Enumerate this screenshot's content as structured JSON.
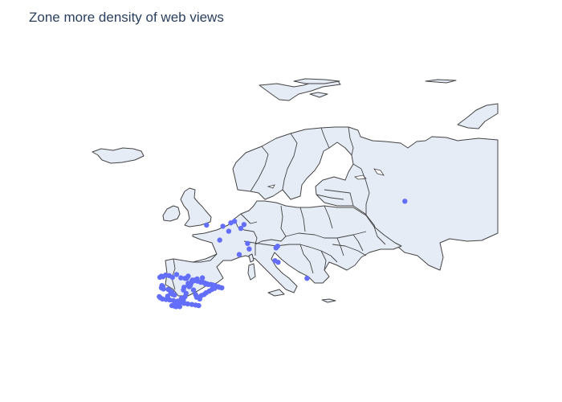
{
  "title": "Zone more density of web views",
  "colors": {
    "land": "#e5ecf6",
    "border": "#444444",
    "marker": "#636efa",
    "title": "#2a3f5f"
  },
  "chart_data": {
    "type": "scatter",
    "projection": "natural earth",
    "scope": "europe",
    "series": [
      {
        "lat": [
          42.3,
          42.2,
          42.5,
          42.4,
          42.1,
          42.6,
          42.0,
          41.9,
          42.3,
          41.6,
          41.5,
          41.3,
          40.9,
          40.6,
          40.4,
          40.2,
          40.0,
          39.9,
          39.6,
          39.4,
          39.2,
          39.0,
          38.9,
          38.7,
          38.6,
          38.4,
          38.2,
          38.1,
          38.0,
          37.9,
          37.8,
          37.6,
          37.4,
          37.3,
          37.2,
          37.1,
          37.0,
          37.3,
          37.5,
          37.7,
          37.0,
          36.9,
          36.8,
          36.8,
          37.9,
          38.3,
          38.6,
          39.2,
          39.8,
          40.3,
          40.7,
          41.1,
          41.5,
          41.4,
          41.2,
          41.1,
          40.9,
          40.8,
          40.8,
          40.7,
          40.6,
          40.4,
          40.2,
          40.3,
          40.1,
          39.9,
          39.6,
          39.3,
          39.0,
          38.8,
          38.5,
          41.8,
          41.6,
          41.4,
          41.0,
          40.4,
          40.6,
          39.8,
          39.0,
          38.5,
          38.2,
          42.0,
          41.9,
          42.1,
          51.5,
          51.9,
          52.2,
          51.6,
          51.3,
          50.9,
          50.4,
          48.8,
          48.2,
          46.2,
          47.4,
          47.7,
          47.2,
          45.1,
          41.9,
          44.8,
          55.8
        ],
        "lon": [
          -8.7,
          -8.4,
          -7.9,
          -7.2,
          -6.6,
          -5.8,
          -5.0,
          -4.2,
          -3.6,
          -2.8,
          -1.9,
          -1.0,
          -0.3,
          -8.6,
          -8.4,
          -8.7,
          -8.3,
          -7.4,
          -7.0,
          -6.7,
          -6.9,
          -6.5,
          -6.2,
          -7.5,
          -9.1,
          -8.9,
          -8.5,
          -7.8,
          -7.1,
          -6.4,
          -5.6,
          -5.0,
          -4.4,
          -3.7,
          -2.9,
          -2.2,
          -1.6,
          -6.0,
          -5.8,
          -5.3,
          -6.7,
          -6.2,
          -5.9,
          -5.2,
          -4.5,
          -4.9,
          -4.2,
          -4.0,
          -4.5,
          -4.4,
          -3.6,
          -3.0,
          -2.4,
          -1.8,
          -1.2,
          -0.5,
          0.0,
          0.2,
          0.7,
          1.1,
          1.5,
          2.1,
          2.8,
          2.3,
          1.4,
          0.9,
          0.4,
          -0.2,
          -0.6,
          -1.1,
          -1.6,
          -1.9,
          -2.3,
          -2.9,
          -3.6,
          -3.4,
          -3.2,
          -2.6,
          -2.2,
          -2.0,
          -1.4,
          -0.9,
          -3.9,
          -9.0,
          -0.1,
          4.5,
          5.2,
          7.0,
          3.0,
          6.4,
          4.1,
          2.4,
          7.7,
          6.1,
          13.1,
          13.4,
          8.0,
          12.9,
          19.0,
          13.5,
          37.6
        ]
      }
    ]
  }
}
